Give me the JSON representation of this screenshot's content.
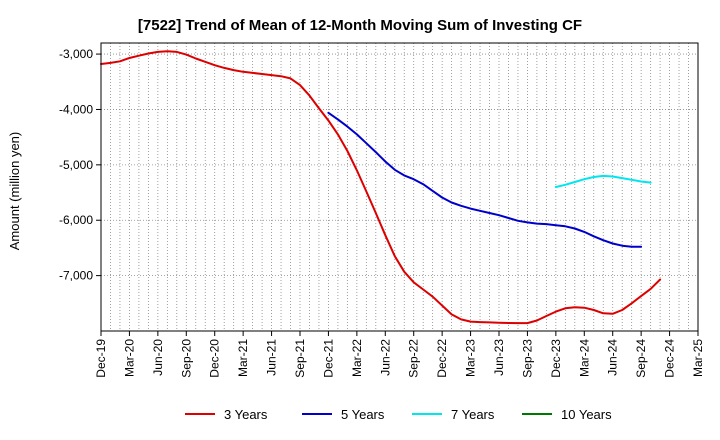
{
  "chart_data": {
    "type": "line",
    "title": "[7522]  Trend of Mean of 12-Month Moving Sum of Investing CF",
    "xlabel": "",
    "ylabel": "Amount (million yen)",
    "ylim": [
      -8000,
      -2800
    ],
    "y_ticks": [
      -3000,
      -4000,
      -5000,
      -6000,
      -7000
    ],
    "y_tick_labels": [
      "-3,000",
      "-4,000",
      "-5,000",
      "-6,000",
      "-7,000"
    ],
    "x_tick_labels": [
      "Dec-19",
      "Mar-20",
      "Jun-20",
      "Sep-20",
      "Dec-20",
      "Mar-21",
      "Jun-21",
      "Sep-21",
      "Dec-21",
      "Mar-22",
      "Jun-22",
      "Sep-22",
      "Dec-22",
      "Mar-23",
      "Jun-23",
      "Sep-23",
      "Dec-23",
      "Mar-24",
      "Jun-24",
      "Sep-24",
      "Dec-24",
      "Mar-25"
    ],
    "x_month_count": 63,
    "grid": true,
    "legend_position": "bottom",
    "series": [
      {
        "name": "3 Years",
        "color": "#dd0000",
        "start_month": 0,
        "values": [
          -3180,
          -3160,
          -3130,
          -3070,
          -3030,
          -2990,
          -2960,
          -2950,
          -2960,
          -3010,
          -3080,
          -3140,
          -3200,
          -3250,
          -3290,
          -3320,
          -3340,
          -3360,
          -3380,
          -3400,
          -3440,
          -3560,
          -3750,
          -3980,
          -4200,
          -4450,
          -4750,
          -5100,
          -5480,
          -5870,
          -6270,
          -6650,
          -6930,
          -7120,
          -7250,
          -7380,
          -7540,
          -7700,
          -7790,
          -7830,
          -7840,
          -7845,
          -7850,
          -7855,
          -7857,
          -7858,
          -7810,
          -7730,
          -7650,
          -7590,
          -7570,
          -7580,
          -7620,
          -7680,
          -7690,
          -7620,
          -7500,
          -7370,
          -7240,
          -7070
        ]
      },
      {
        "name": "5 Years",
        "color": "#0000cc",
        "start_month": 24,
        "values": [
          -4060,
          -4180,
          -4310,
          -4450,
          -4610,
          -4770,
          -4940,
          -5090,
          -5190,
          -5260,
          -5350,
          -5470,
          -5590,
          -5680,
          -5740,
          -5790,
          -5830,
          -5870,
          -5910,
          -5960,
          -6010,
          -6040,
          -6060,
          -6070,
          -6090,
          -6110,
          -6150,
          -6210,
          -6290,
          -6360,
          -6420,
          -6460,
          -6480,
          -6480
        ]
      },
      {
        "name": "7 Years",
        "color": "#00e5ee",
        "start_month": 48,
        "values": [
          -5400,
          -5360,
          -5310,
          -5260,
          -5220,
          -5200,
          -5210,
          -5240,
          -5270,
          -5300,
          -5320
        ]
      },
      {
        "name": "10 Years",
        "color": "#007700",
        "start_month": 0,
        "values": []
      }
    ]
  }
}
